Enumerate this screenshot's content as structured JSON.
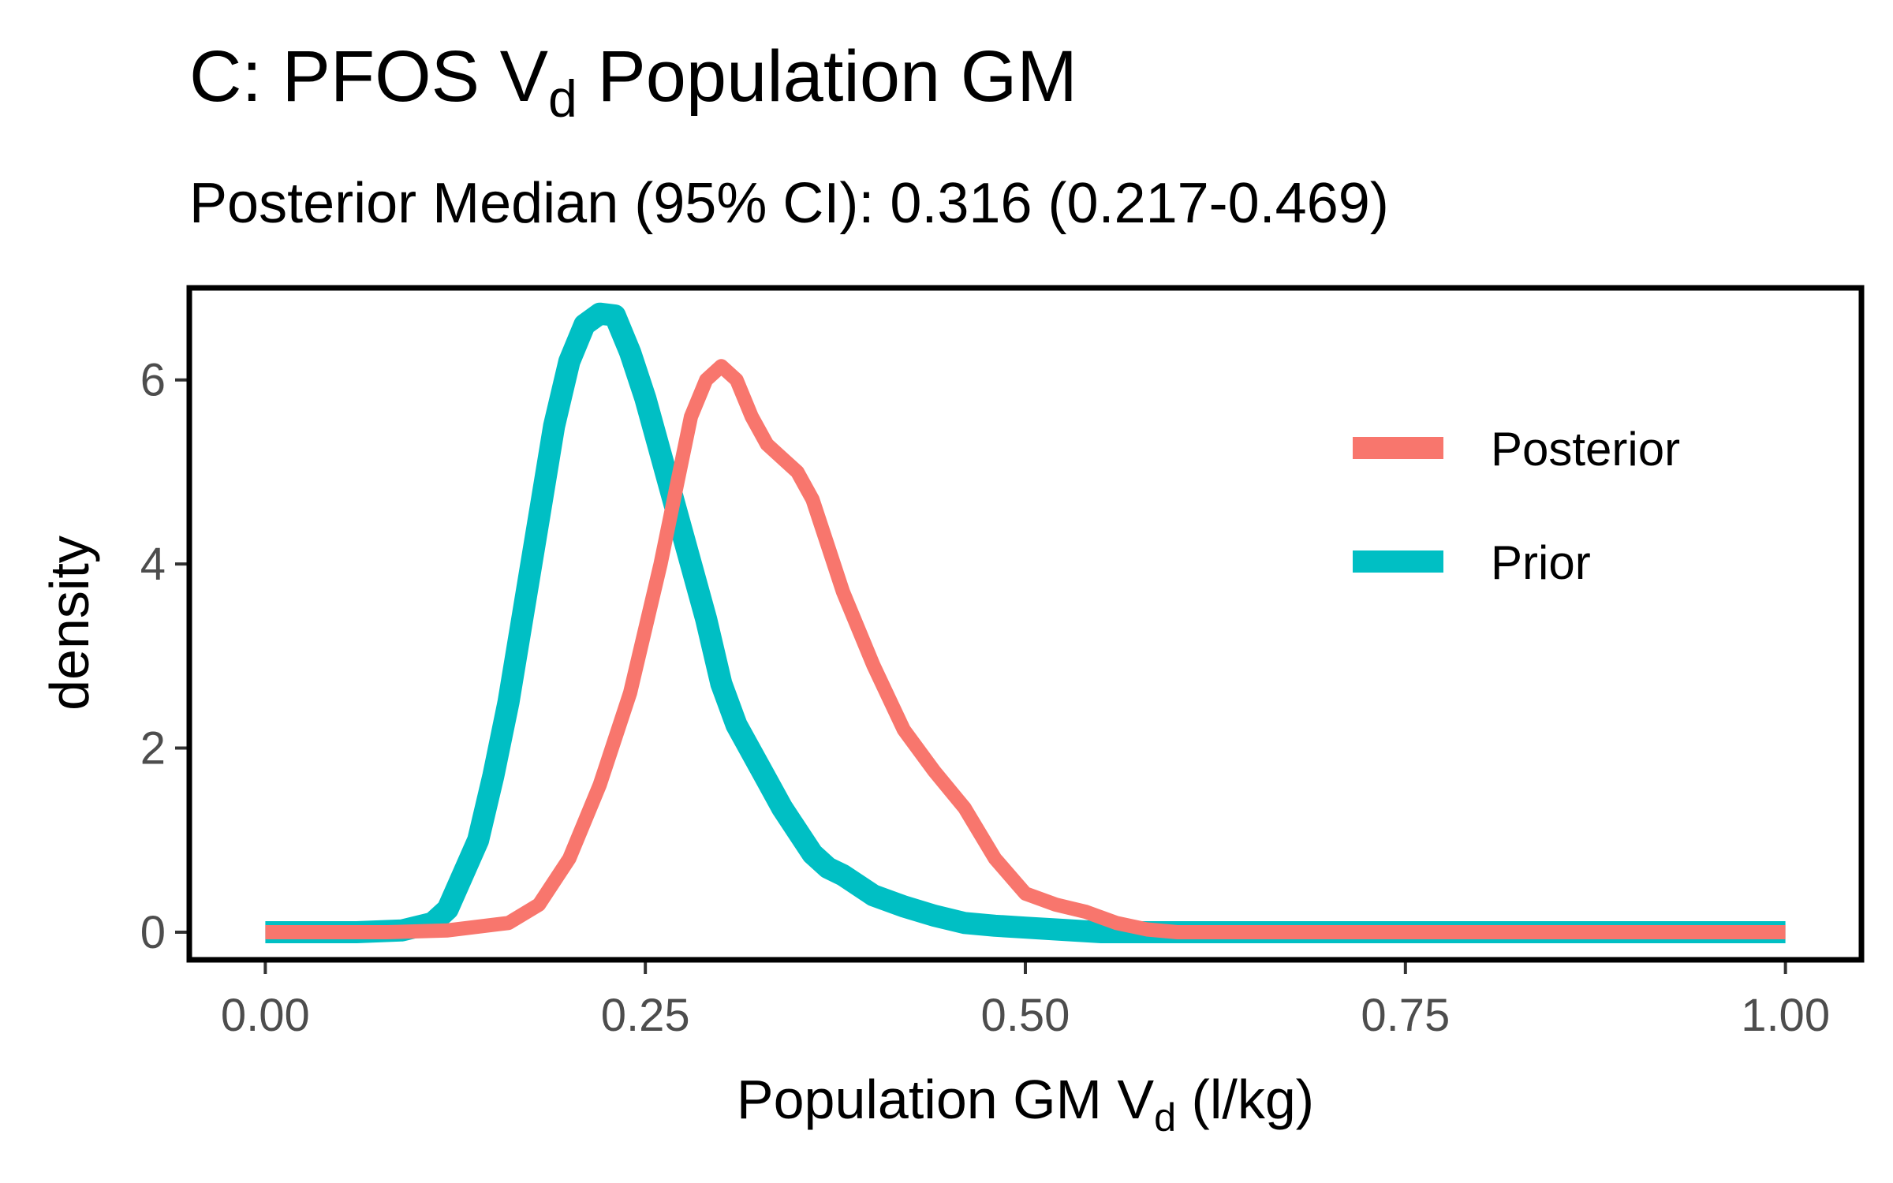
{
  "chart_data": {
    "type": "line",
    "title": "C: PFOS V",
    "title_subscript": "d",
    "title_suffix": " Population GM",
    "subtitle": "Posterior Median (95% CI): 0.316 (0.217-0.469)",
    "xlabel": "Population GM V",
    "xlabel_subscript": "d",
    "xlabel_suffix": " (l/kg)",
    "ylabel": "density",
    "xlim": [
      -0.05,
      1.05
    ],
    "ylim": [
      -0.3,
      7.0
    ],
    "xticks": [
      0.0,
      0.25,
      0.5,
      0.75,
      1.0
    ],
    "xtick_labels": [
      "0.00",
      "0.25",
      "0.50",
      "0.75",
      "1.00"
    ],
    "yticks": [
      0,
      2,
      4,
      6
    ],
    "ytick_labels": [
      "0",
      "2",
      "4",
      "6"
    ],
    "legend_position": "top-right",
    "grid": false,
    "series": [
      {
        "name": "Posterior",
        "color": "#F8766D",
        "points": [
          [
            0.0,
            0.0
          ],
          [
            0.08,
            0.0
          ],
          [
            0.12,
            0.02
          ],
          [
            0.16,
            0.1
          ],
          [
            0.18,
            0.3
          ],
          [
            0.2,
            0.8
          ],
          [
            0.22,
            1.6
          ],
          [
            0.24,
            2.6
          ],
          [
            0.26,
            4.0
          ],
          [
            0.27,
            4.8
          ],
          [
            0.28,
            5.6
          ],
          [
            0.29,
            6.0
          ],
          [
            0.3,
            6.15
          ],
          [
            0.31,
            6.0
          ],
          [
            0.32,
            5.6
          ],
          [
            0.33,
            5.3
          ],
          [
            0.34,
            5.15
          ],
          [
            0.35,
            5.0
          ],
          [
            0.36,
            4.7
          ],
          [
            0.37,
            4.2
          ],
          [
            0.38,
            3.7
          ],
          [
            0.4,
            2.9
          ],
          [
            0.42,
            2.2
          ],
          [
            0.44,
            1.75
          ],
          [
            0.46,
            1.35
          ],
          [
            0.48,
            0.8
          ],
          [
            0.5,
            0.42
          ],
          [
            0.52,
            0.3
          ],
          [
            0.54,
            0.22
          ],
          [
            0.56,
            0.1
          ],
          [
            0.58,
            0.03
          ],
          [
            0.6,
            0.0
          ],
          [
            0.7,
            0.0
          ],
          [
            0.8,
            0.0
          ],
          [
            0.9,
            0.0
          ],
          [
            1.0,
            0.0
          ]
        ]
      },
      {
        "name": "Prior",
        "color": "#00BFC4",
        "points": [
          [
            0.0,
            0.0
          ],
          [
            0.06,
            0.0
          ],
          [
            0.09,
            0.02
          ],
          [
            0.11,
            0.1
          ],
          [
            0.12,
            0.25
          ],
          [
            0.14,
            1.0
          ],
          [
            0.15,
            1.7
          ],
          [
            0.16,
            2.5
          ],
          [
            0.17,
            3.5
          ],
          [
            0.18,
            4.5
          ],
          [
            0.19,
            5.5
          ],
          [
            0.2,
            6.2
          ],
          [
            0.21,
            6.6
          ],
          [
            0.22,
            6.72
          ],
          [
            0.23,
            6.7
          ],
          [
            0.24,
            6.3
          ],
          [
            0.25,
            5.8
          ],
          [
            0.26,
            5.2
          ],
          [
            0.27,
            4.6
          ],
          [
            0.28,
            4.0
          ],
          [
            0.29,
            3.4
          ],
          [
            0.3,
            2.7
          ],
          [
            0.31,
            2.25
          ],
          [
            0.32,
            1.95
          ],
          [
            0.33,
            1.65
          ],
          [
            0.34,
            1.35
          ],
          [
            0.35,
            1.1
          ],
          [
            0.36,
            0.85
          ],
          [
            0.37,
            0.7
          ],
          [
            0.38,
            0.62
          ],
          [
            0.4,
            0.4
          ],
          [
            0.42,
            0.28
          ],
          [
            0.44,
            0.18
          ],
          [
            0.46,
            0.1
          ],
          [
            0.48,
            0.07
          ],
          [
            0.5,
            0.05
          ],
          [
            0.52,
            0.03
          ],
          [
            0.55,
            0.0
          ],
          [
            0.6,
            0.0
          ],
          [
            0.7,
            0.0
          ],
          [
            0.8,
            0.0
          ],
          [
            0.9,
            0.0
          ],
          [
            1.0,
            0.0
          ]
        ]
      }
    ]
  }
}
